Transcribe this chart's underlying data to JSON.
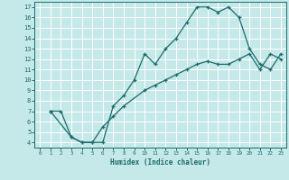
{
  "xlabel": "Humidex (Indice chaleur)",
  "bg_color": "#c5e8e8",
  "grid_color": "#b0d8d8",
  "line_color": "#1a6b6b",
  "xlim": [
    -0.5,
    23.5
  ],
  "ylim": [
    3.5,
    17.5
  ],
  "xticks": [
    0,
    1,
    2,
    3,
    4,
    5,
    6,
    7,
    8,
    9,
    10,
    11,
    12,
    13,
    14,
    15,
    16,
    17,
    18,
    19,
    20,
    21,
    22,
    23
  ],
  "yticks": [
    4,
    5,
    6,
    7,
    8,
    9,
    10,
    11,
    12,
    13,
    14,
    15,
    16,
    17
  ],
  "curve1_x": [
    1,
    2,
    3,
    4,
    5,
    6,
    7,
    8,
    9,
    10,
    11,
    12,
    13,
    14,
    15,
    16,
    17,
    18,
    19,
    20,
    21,
    22,
    23
  ],
  "curve1_y": [
    7,
    7,
    4.5,
    4,
    4,
    4,
    7.5,
    8.5,
    10,
    12.5,
    11.5,
    13,
    14,
    15.5,
    17,
    17,
    16.5,
    17,
    16,
    13,
    11.5,
    11,
    12.5
  ],
  "curve2_x": [
    1,
    3,
    4,
    5,
    6,
    7,
    8,
    10,
    11,
    12,
    13,
    14,
    15,
    16,
    17,
    18,
    19,
    20,
    21,
    22,
    23
  ],
  "curve2_y": [
    7,
    4.5,
    4,
    4,
    5.5,
    6.5,
    7.5,
    9.0,
    9.5,
    10.0,
    10.5,
    11.0,
    11.5,
    11.8,
    11.5,
    11.5,
    12.0,
    12.5,
    11.0,
    12.5,
    12.0
  ]
}
